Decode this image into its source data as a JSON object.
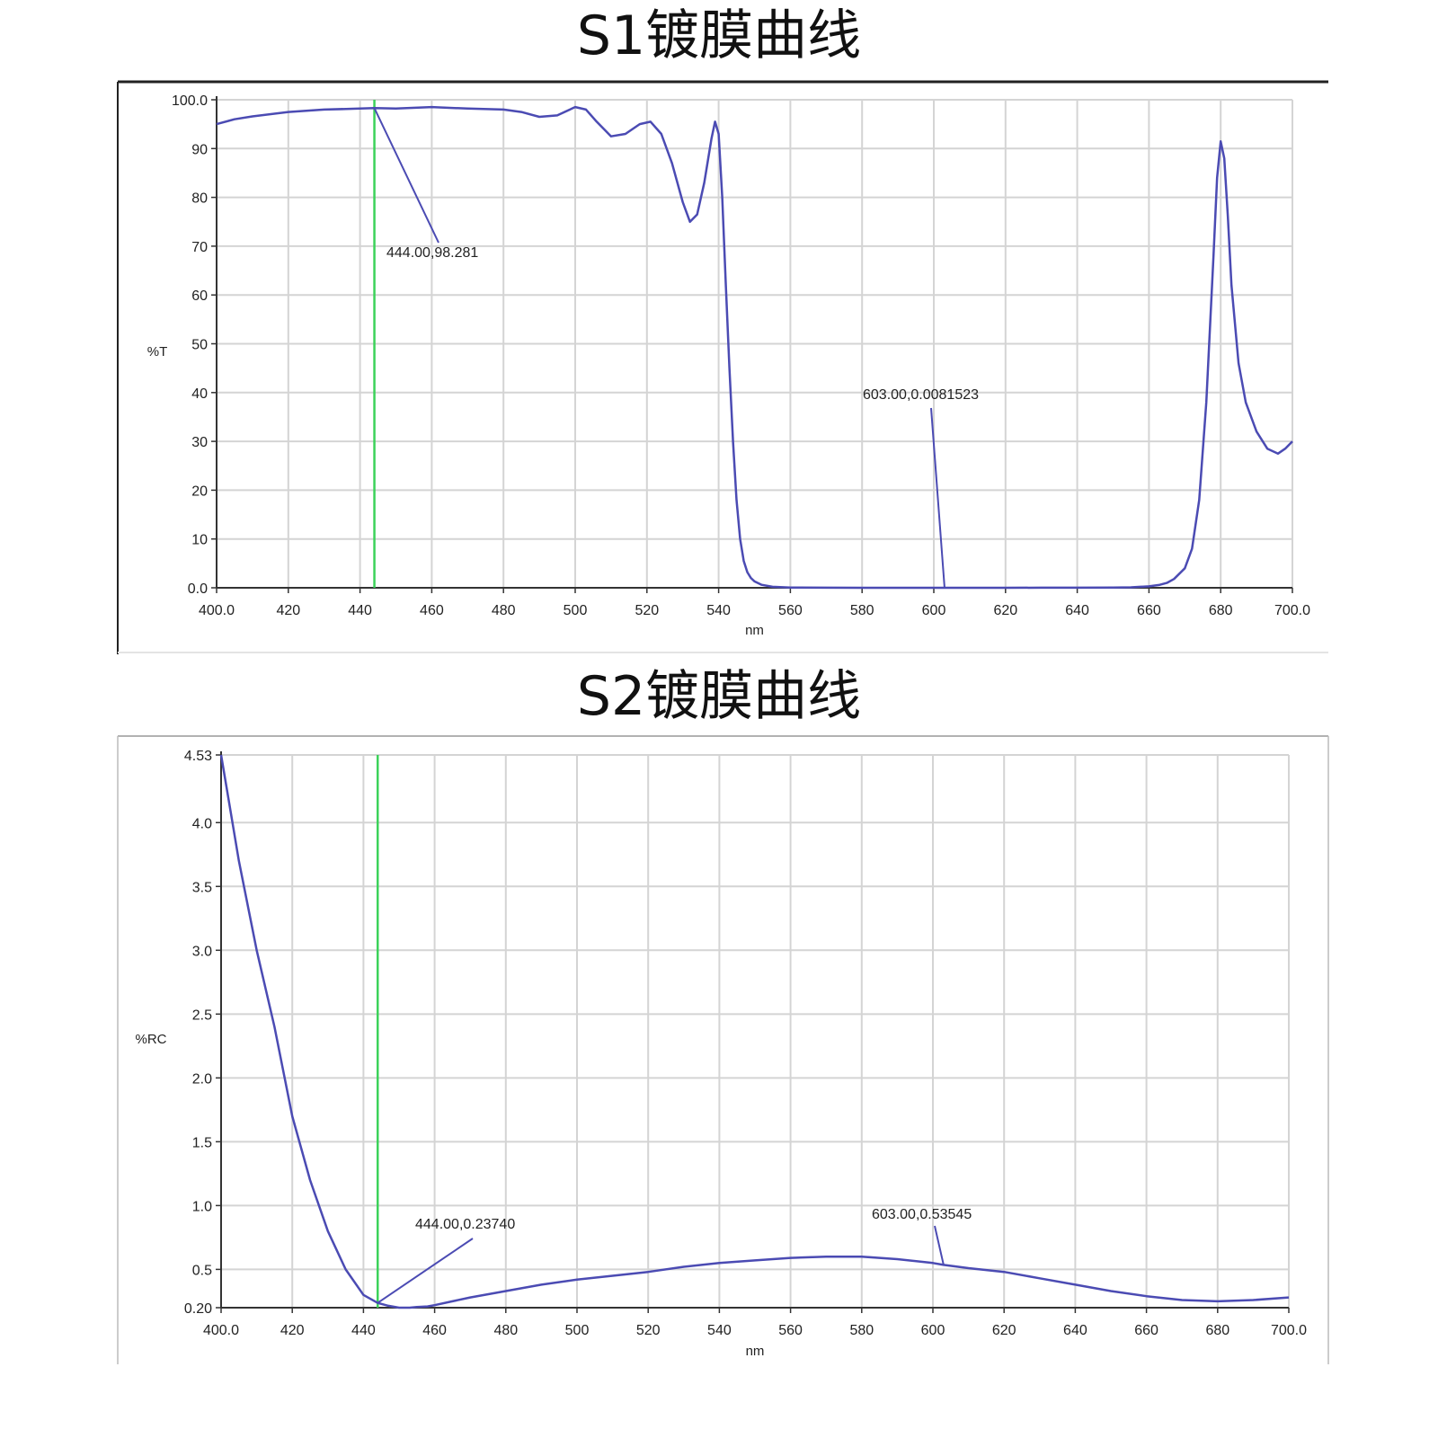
{
  "chart_data": [
    {
      "type": "line",
      "title": "S1镀膜曲线",
      "xlabel": "nm",
      "ylabel": "%T",
      "xlim": [
        400.0,
        700.0
      ],
      "ylim": [
        0.0,
        100.0
      ],
      "x_ticks": [
        "400.0",
        "420",
        "440",
        "460",
        "480",
        "500",
        "520",
        "540",
        "560",
        "580",
        "600",
        "620",
        "640",
        "660",
        "680",
        "700.0"
      ],
      "y_ticks": [
        "0.0",
        "10",
        "20",
        "30",
        "40",
        "50",
        "60",
        "70",
        "80",
        "90",
        "100.0"
      ],
      "grid": true,
      "colors": {
        "curve": "#4b4bb3",
        "marker": "#3cd25a",
        "grid": "#d4d4d4"
      },
      "marker_line_x": 444,
      "series": [
        {
          "x": [
            400,
            405,
            410,
            420,
            430,
            440,
            444,
            450,
            460,
            470,
            480,
            485,
            490,
            495,
            500,
            503,
            506,
            510,
            514,
            518,
            521,
            524,
            527,
            530,
            532,
            534,
            536,
            538,
            539,
            540,
            541,
            542,
            543,
            544,
            545,
            546,
            547,
            548,
            549,
            550,
            552,
            555,
            560,
            570,
            580,
            590,
            600,
            610,
            620,
            630,
            640,
            650,
            655,
            660,
            663,
            665,
            667,
            670,
            672,
            674,
            676,
            678,
            679,
            680,
            681,
            682,
            683,
            685,
            687,
            690,
            693,
            696,
            698,
            700
          ],
          "y": [
            95.0,
            96.0,
            96.6,
            97.5,
            98.0,
            98.2,
            98.281,
            98.2,
            98.5,
            98.2,
            98.0,
            97.5,
            96.5,
            96.8,
            98.5,
            98.0,
            95.5,
            92.5,
            93.0,
            95.0,
            95.5,
            93.0,
            87.0,
            79.0,
            75.0,
            76.5,
            83.0,
            92.0,
            95.5,
            93.0,
            80.0,
            62.0,
            45.0,
            30.0,
            18.0,
            10.0,
            5.5,
            3.2,
            2.0,
            1.3,
            0.6,
            0.2,
            0.05,
            0.01,
            0.008,
            0.008,
            0.0081523,
            0.008,
            0.008,
            0.01,
            0.01,
            0.05,
            0.1,
            0.3,
            0.6,
            1.0,
            1.8,
            4.0,
            8.0,
            18.0,
            38.0,
            68.0,
            84.0,
            91.5,
            88.0,
            76.0,
            62.0,
            46.0,
            38.0,
            32.0,
            28.5,
            27.5,
            28.5,
            30.0
          ]
        }
      ],
      "annotations": [
        {
          "label": "444.00,98.281",
          "x": 444,
          "y": 98.281
        },
        {
          "label": "603.00,0.0081523",
          "x": 603,
          "y": 0.0081523
        }
      ]
    },
    {
      "type": "line",
      "title": "S2镀膜曲线",
      "xlabel": "nm",
      "ylabel": "%RC",
      "xlim": [
        400.0,
        700.0
      ],
      "ylim": [
        0.2,
        4.53
      ],
      "x_ticks": [
        "400.0",
        "420",
        "440",
        "460",
        "480",
        "500",
        "520",
        "540",
        "560",
        "580",
        "600",
        "620",
        "640",
        "660",
        "680",
        "700.0"
      ],
      "y_ticks": [
        "0.20",
        "0.5",
        "1.0",
        "1.5",
        "2.0",
        "2.5",
        "3.0",
        "3.5",
        "4.0",
        "4.53"
      ],
      "grid": true,
      "colors": {
        "curve": "#4b4bb3",
        "marker": "#3cd25a",
        "grid": "#d4d4d4"
      },
      "marker_line_x": 444,
      "series": [
        {
          "x": [
            400,
            402,
            405,
            410,
            415,
            420,
            425,
            430,
            435,
            440,
            444,
            447,
            450,
            453,
            455,
            458,
            460,
            465,
            470,
            480,
            490,
            500,
            510,
            520,
            530,
            540,
            550,
            560,
            570,
            580,
            590,
            600,
            603,
            610,
            620,
            630,
            640,
            650,
            660,
            670,
            680,
            690,
            700
          ],
          "y": [
            4.53,
            4.2,
            3.7,
            3.0,
            2.4,
            1.7,
            1.2,
            0.8,
            0.5,
            0.3,
            0.2374,
            0.215,
            0.2,
            0.2,
            0.205,
            0.21,
            0.22,
            0.25,
            0.28,
            0.33,
            0.38,
            0.42,
            0.45,
            0.48,
            0.52,
            0.55,
            0.57,
            0.59,
            0.6,
            0.6,
            0.58,
            0.55,
            0.53545,
            0.51,
            0.48,
            0.43,
            0.38,
            0.33,
            0.29,
            0.26,
            0.25,
            0.26,
            0.28
          ]
        }
      ],
      "annotations": [
        {
          "label": "444.00,0.23740",
          "x": 444,
          "y": 0.2374
        },
        {
          "label": "603.00,0.53545",
          "x": 603,
          "y": 0.53545
        }
      ]
    }
  ]
}
